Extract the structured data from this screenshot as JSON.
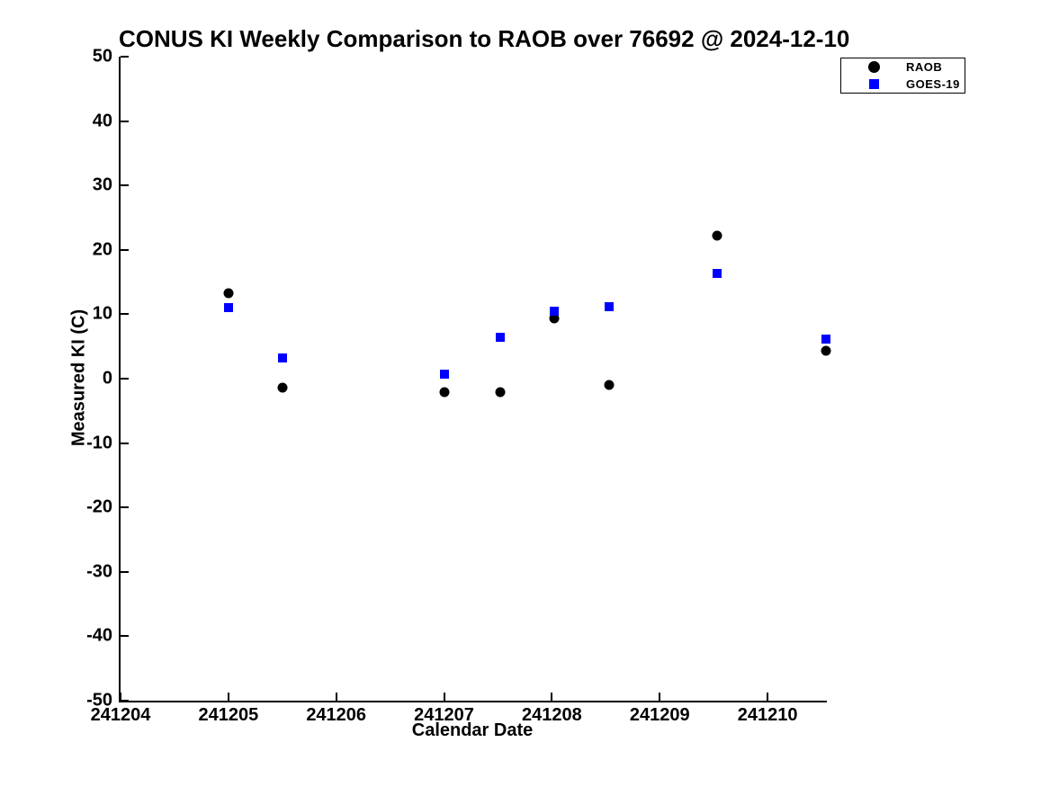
{
  "chart_data": {
    "type": "scatter",
    "title": "CONUS KI Weekly Comparison to RAOB over 76692 @ 2024-12-10",
    "xlabel": "Calendar Date",
    "ylabel": "Measured KI (C)",
    "xlim": [
      241204,
      241210.55
    ],
    "ylim": [
      -50,
      50
    ],
    "x_ticks": [
      241204,
      241205,
      241206,
      241207,
      241208,
      241209,
      241210
    ],
    "y_ticks": [
      50,
      40,
      30,
      20,
      10,
      0,
      -10,
      -20,
      -30,
      -40,
      -50
    ],
    "grid": false,
    "legend_position": "top-right",
    "series": [
      {
        "name": "RAOB",
        "marker": "circle",
        "color": "#000000",
        "points": [
          [
            241205.0,
            13.2
          ],
          [
            241205.5,
            -1.4
          ],
          [
            241207.0,
            -2.1
          ],
          [
            241207.52,
            -2.1
          ],
          [
            241208.02,
            9.4
          ],
          [
            241208.53,
            -1.0
          ],
          [
            241209.53,
            22.2
          ],
          [
            241210.54,
            4.3
          ]
        ]
      },
      {
        "name": "GOES-19",
        "marker": "square",
        "color": "#0000ff",
        "points": [
          [
            241205.0,
            11.0
          ],
          [
            241205.5,
            3.2
          ],
          [
            241207.0,
            0.7
          ],
          [
            241207.52,
            6.4
          ],
          [
            241208.02,
            10.5
          ],
          [
            241208.53,
            11.2
          ],
          [
            241209.53,
            16.3
          ],
          [
            241210.54,
            6.2
          ]
        ]
      }
    ]
  }
}
